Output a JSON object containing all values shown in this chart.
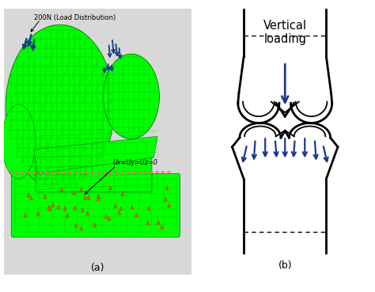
{
  "fig_width": 4.74,
  "fig_height": 3.69,
  "dpi": 100,
  "bg_color": "#ffffff",
  "panel_a_label": "(a)",
  "panel_b_label": "(b)",
  "label_200N": "200N (Load Distribution)",
  "label_uxyz": "Ux=Uy=Uz=0",
  "label_vertical": "Vertical\nloading",
  "green_bright": "#00ff00",
  "green_mid": "#00cc00",
  "green_dark": "#009900",
  "mesh_color": "#007700",
  "blue_dark": "#1a3a8a",
  "orange_color": "#cc6600",
  "red_tri_color": "#cc3333",
  "panel_bg": "#dcdcdc"
}
